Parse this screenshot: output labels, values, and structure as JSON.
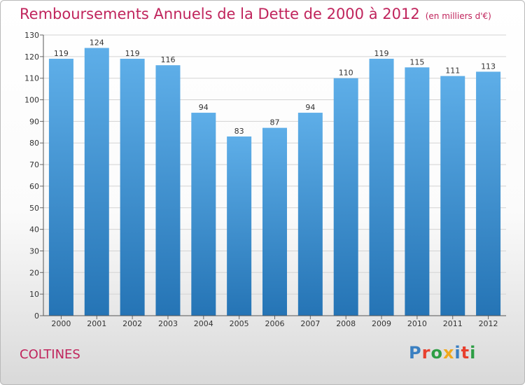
{
  "header": {
    "title": "Remboursements Annuels de la Dette de 2000 à 2012",
    "unit": "(en milliers d'€)"
  },
  "commune": "COLTINES",
  "logo": {
    "text": "Proxiti",
    "colors": [
      "#3a7fc1",
      "#e8402e",
      "#2e9e45",
      "#f0a81d",
      "#3a7fc1",
      "#e8402e",
      "#2e9e45"
    ]
  },
  "chart_data": {
    "type": "bar",
    "title": "Remboursements Annuels de la Dette de 2000 à 2012",
    "xlabel": "",
    "ylabel": "",
    "categories": [
      "2000",
      "2001",
      "2002",
      "2003",
      "2004",
      "2005",
      "2006",
      "2007",
      "2008",
      "2009",
      "2010",
      "2011",
      "2012"
    ],
    "values": [
      119,
      124,
      119,
      116,
      94,
      83,
      87,
      94,
      110,
      119,
      115,
      111,
      113
    ],
    "ylim": [
      0,
      130
    ],
    "yticks": [
      0,
      10,
      20,
      30,
      40,
      50,
      60,
      70,
      80,
      90,
      100,
      110,
      120,
      130
    ],
    "grid": true,
    "bar_color_top": "#5eaee8",
    "bar_color_bottom": "#2574b5"
  }
}
